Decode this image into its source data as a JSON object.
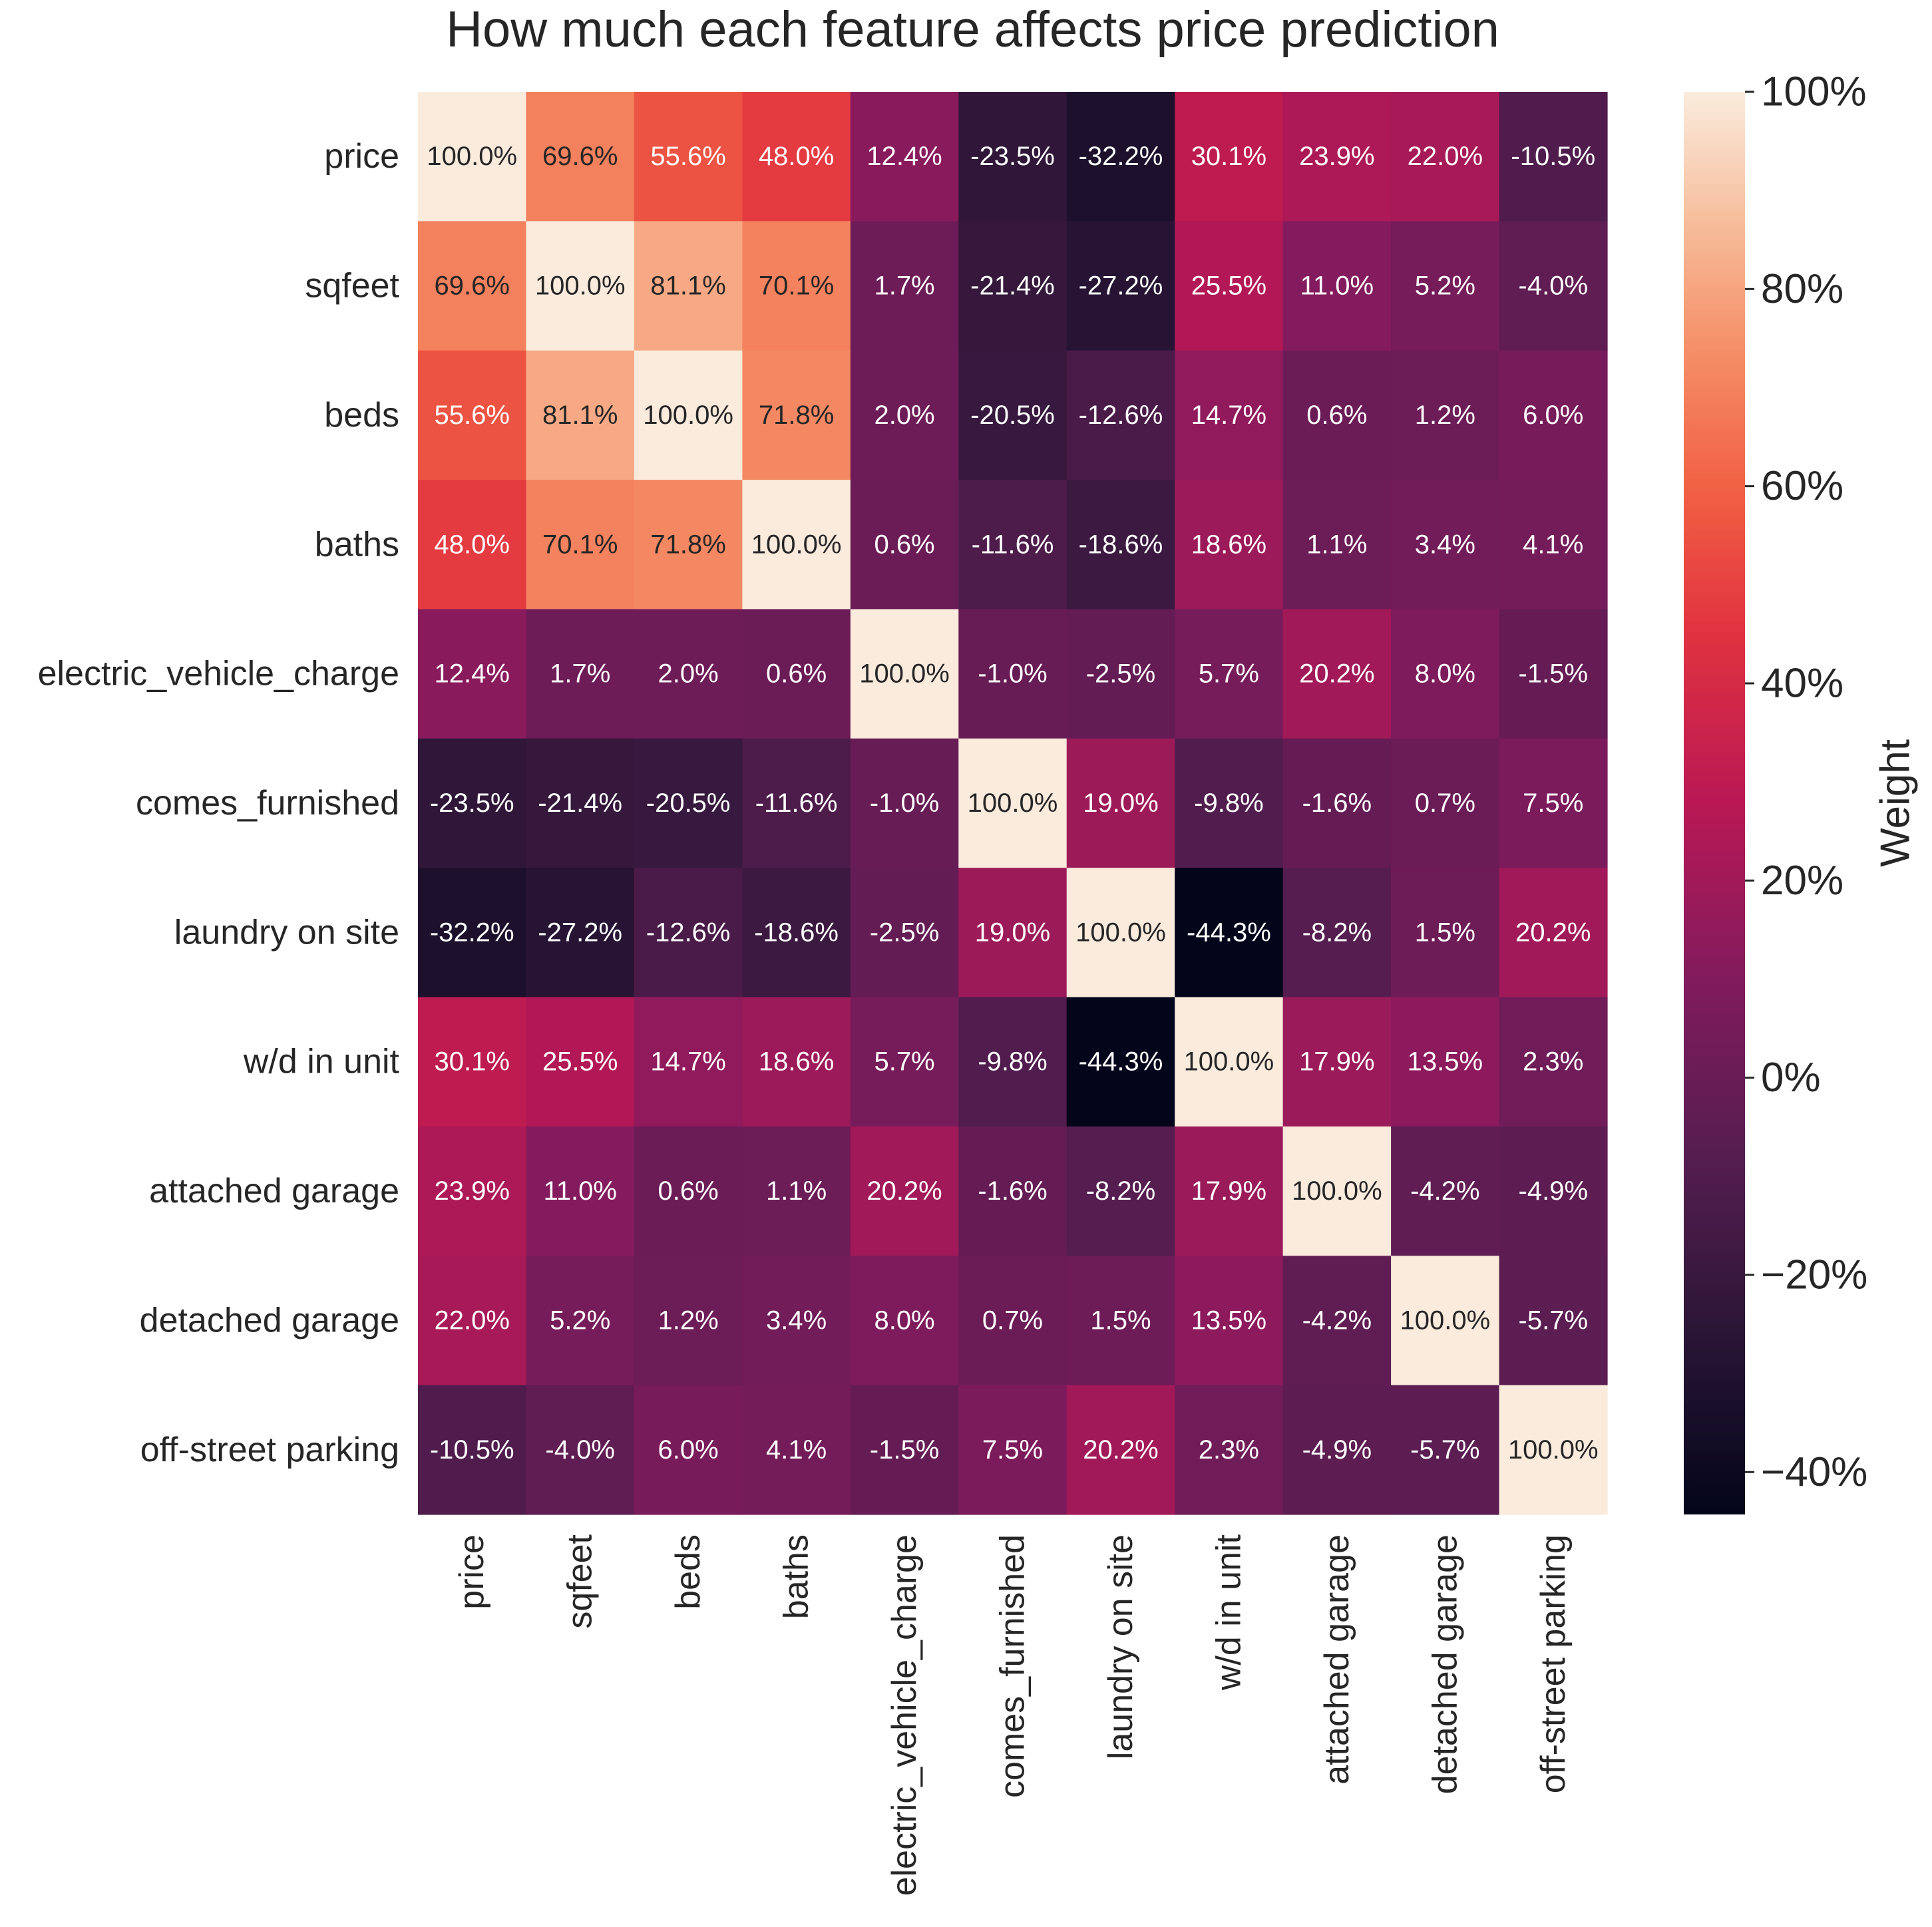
{
  "chart_data": {
    "type": "heatmap",
    "title": "How much each feature affects price prediction",
    "rows": [
      "price",
      "sqfeet",
      "beds",
      "baths",
      "electric_vehicle_charge",
      "comes_furnished",
      "laundry on site",
      "w/d in unit",
      "attached garage",
      "detached garage",
      "off-street parking"
    ],
    "columns": [
      "price",
      "sqfeet",
      "beds",
      "baths",
      "electric_vehicle_charge",
      "comes_furnished",
      "laundry on site",
      "w/d in unit",
      "attached garage",
      "detached garage",
      "off-street parking"
    ],
    "values": [
      [
        100.0,
        69.6,
        55.6,
        48.0,
        12.4,
        -23.5,
        -32.2,
        30.1,
        23.9,
        22.0,
        -10.5
      ],
      [
        69.6,
        100.0,
        81.1,
        70.1,
        1.7,
        -21.4,
        -27.2,
        25.5,
        11.0,
        5.2,
        -4.0
      ],
      [
        55.6,
        81.1,
        100.0,
        71.8,
        2.0,
        -20.5,
        -12.6,
        14.7,
        0.6,
        1.2,
        6.0
      ],
      [
        48.0,
        70.1,
        71.8,
        100.0,
        0.6,
        -11.6,
        -18.6,
        18.6,
        1.1,
        3.4,
        4.1
      ],
      [
        12.4,
        1.7,
        2.0,
        0.6,
        100.0,
        -1.0,
        -2.5,
        5.7,
        20.2,
        8.0,
        -1.5
      ],
      [
        -23.5,
        -21.4,
        -20.5,
        -11.6,
        -1.0,
        100.0,
        19.0,
        -9.8,
        -1.6,
        0.7,
        7.5
      ],
      [
        -32.2,
        -27.2,
        -12.6,
        -18.6,
        -2.5,
        19.0,
        100.0,
        -44.3,
        -8.2,
        1.5,
        20.2
      ],
      [
        30.1,
        25.5,
        14.7,
        18.6,
        5.7,
        -9.8,
        -44.3,
        100.0,
        17.9,
        13.5,
        2.3
      ],
      [
        23.9,
        11.0,
        0.6,
        1.1,
        20.2,
        -1.6,
        -8.2,
        17.9,
        100.0,
        -4.2,
        -4.9
      ],
      [
        22.0,
        5.2,
        1.2,
        3.4,
        8.0,
        0.7,
        1.5,
        13.5,
        -4.2,
        100.0,
        -5.7
      ],
      [
        -10.5,
        -4.0,
        6.0,
        4.1,
        -1.5,
        7.5,
        20.2,
        2.3,
        -4.9,
        -5.7,
        100.0
      ]
    ],
    "value_suffix": "%",
    "colorbar": {
      "label": "Weight",
      "min": -44.3,
      "max": 100.0,
      "ticks": [
        -40,
        -20,
        0,
        20,
        40,
        60,
        80,
        100
      ],
      "tick_labels": [
        "−40%",
        "−20%",
        "0%",
        "20%",
        "40%",
        "60%",
        "80%",
        "100%"
      ],
      "colormap": "rocket"
    },
    "grid": false
  }
}
